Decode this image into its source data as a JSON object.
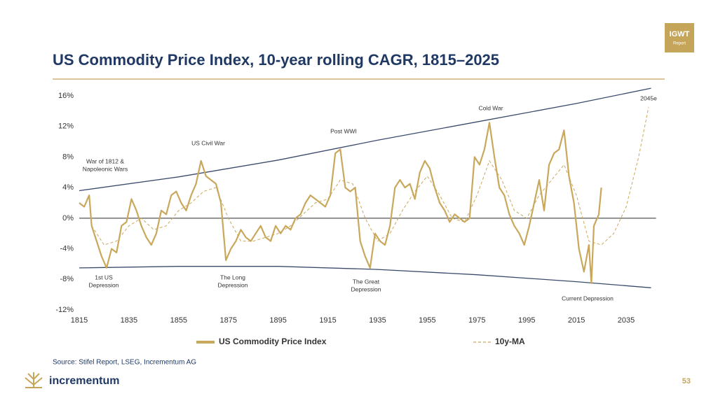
{
  "header": {
    "title": "US Commodity Price Index, 10-year rolling CAGR, 1815–2025",
    "badge": [
      "IGWT",
      "Report"
    ]
  },
  "chart_data": {
    "type": "line",
    "xlim": [
      1815,
      2047
    ],
    "xticks": [
      1815,
      1835,
      1855,
      1875,
      1895,
      1915,
      1935,
      1955,
      1975,
      1995,
      2015,
      2035
    ],
    "ylim": [
      -12,
      16
    ],
    "yticks": [
      {
        "value": -12,
        "label": "-12%"
      },
      {
        "value": -8,
        "label": "-8%"
      },
      {
        "value": -4,
        "label": "-4%"
      },
      {
        "value": 0,
        "label": "0%"
      },
      {
        "value": 4,
        "label": "4%"
      },
      {
        "value": 8,
        "label": "8%"
      },
      {
        "value": 12,
        "label": "12%"
      },
      {
        "value": 16,
        "label": "16%"
      }
    ],
    "series": [
      {
        "name": "US Commodity Price Index",
        "color": "#c9a85c",
        "style": "solid",
        "x": [
          1815,
          1817,
          1819,
          1820,
          1822,
          1824,
          1826,
          1828,
          1830,
          1832,
          1834,
          1836,
          1838,
          1840,
          1842,
          1844,
          1846,
          1848,
          1850,
          1852,
          1854,
          1856,
          1858,
          1860,
          1862,
          1864,
          1866,
          1868,
          1870,
          1872,
          1874,
          1876,
          1878,
          1880,
          1882,
          1884,
          1886,
          1888,
          1890,
          1892,
          1894,
          1896,
          1898,
          1900,
          1902,
          1904,
          1906,
          1908,
          1910,
          1912,
          1914,
          1916,
          1918,
          1920,
          1922,
          1924,
          1926,
          1928,
          1930,
          1932,
          1934,
          1936,
          1938,
          1940,
          1942,
          1944,
          1946,
          1948,
          1950,
          1952,
          1954,
          1956,
          1958,
          1960,
          1962,
          1964,
          1966,
          1968,
          1970,
          1972,
          1974,
          1976,
          1978,
          1980,
          1982,
          1984,
          1986,
          1988,
          1990,
          1992,
          1994,
          1996,
          1998,
          2000,
          2002,
          2004,
          2006,
          2008,
          2010,
          2012,
          2014,
          2016,
          2018,
          2020,
          2021,
          2022,
          2024,
          2025
        ],
        "values": [
          2,
          1.5,
          3,
          -1,
          -3,
          -5,
          -6.5,
          -4,
          -4.5,
          -1,
          -0.5,
          2.5,
          1,
          -1,
          -2.5,
          -3.5,
          -2,
          1,
          0.5,
          3,
          3.5,
          2,
          1,
          3,
          4.5,
          7.5,
          5.5,
          5,
          4.5,
          2,
          -5.5,
          -4,
          -3,
          -1.5,
          -2.5,
          -3,
          -2,
          -1,
          -2.5,
          -3,
          -1,
          -2,
          -1,
          -1.5,
          0,
          0.5,
          2,
          3,
          2.5,
          2,
          1.5,
          3,
          8.5,
          9,
          4,
          3.5,
          4,
          -3,
          -5,
          -6.5,
          -2,
          -3,
          -3.5,
          -1,
          4,
          5,
          4,
          4.5,
          2.5,
          6,
          7.5,
          6.5,
          4,
          2,
          1,
          -0.5,
          0.5,
          0,
          -0.5,
          0,
          8,
          7,
          9,
          12.5,
          8,
          4,
          3,
          0.5,
          -1,
          -2,
          -3.5,
          -1,
          2,
          5,
          1,
          7,
          8.5,
          9,
          11.5,
          5.5,
          2,
          -4,
          -7,
          -3.5,
          -8.5,
          -1,
          0.5,
          4
        ]
      },
      {
        "name": "10y-MA",
        "color": "#c9a85c",
        "style": "dashed",
        "x": [
          1820,
          1825,
          1830,
          1835,
          1840,
          1845,
          1850,
          1855,
          1860,
          1865,
          1870,
          1875,
          1880,
          1885,
          1890,
          1895,
          1900,
          1905,
          1910,
          1915,
          1920,
          1925,
          1930,
          1935,
          1940,
          1945,
          1950,
          1955,
          1960,
          1965,
          1970,
          1975,
          1980,
          1985,
          1990,
          1995,
          2000,
          2005,
          2010,
          2015,
          2020,
          2025,
          2030,
          2035,
          2040,
          2044
        ],
        "values": [
          -1,
          -3.5,
          -3,
          -1,
          0,
          -1.5,
          -1,
          1,
          2,
          3.5,
          4,
          0,
          -3,
          -3,
          -2.5,
          -2,
          -1,
          0.5,
          2,
          2.5,
          5,
          4.5,
          0,
          -3,
          -2,
          1,
          3.5,
          5.5,
          3,
          0,
          -0.5,
          3,
          7.5,
          5,
          1,
          0,
          3,
          5,
          7,
          3,
          -3,
          -3.5,
          -2,
          1.5,
          8,
          14.5
        ]
      }
    ],
    "channel_upper": {
      "x": [
        1815,
        1855,
        1895,
        1935,
        1975,
        2015,
        2045
      ],
      "values": [
        3.6,
        5.4,
        7.6,
        10.2,
        12.6,
        15,
        17
      ]
    },
    "channel_lower": {
      "x": [
        1815,
        1855,
        1895,
        1935,
        1975,
        2015,
        2045
      ],
      "values": [
        -6.5,
        -6.3,
        -6.3,
        -6.7,
        -7.4,
        -8.3,
        -9.1
      ]
    },
    "annotations": [
      [
        "War of 1812 &",
        "Napoleonic Wars"
      ],
      [
        "US Civil War"
      ],
      [
        "Post WWI"
      ],
      [
        "Cold War"
      ],
      [
        "2045e"
      ],
      [
        "1st US",
        "Depression"
      ],
      [
        "The Long",
        "Depression"
      ],
      [
        "The Great",
        "Depression"
      ],
      [
        "Current Depression"
      ]
    ]
  },
  "footer": {
    "source": "Source: Stifel Report, LSEG, Incrementum AG",
    "brand": "incrementum",
    "page": "53"
  }
}
